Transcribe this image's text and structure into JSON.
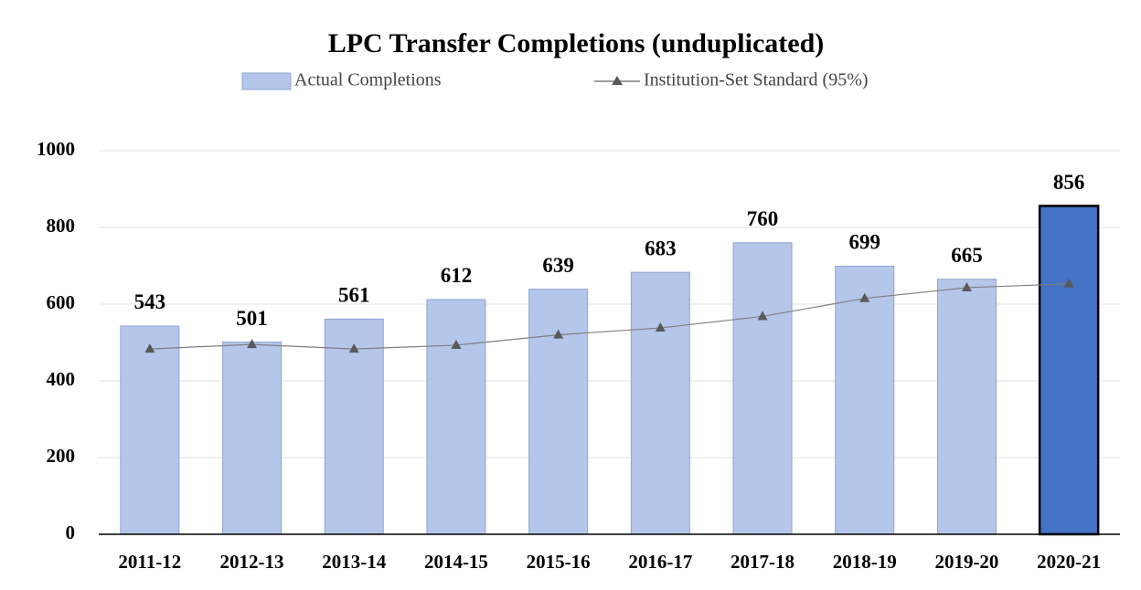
{
  "chart_data": {
    "type": "bar",
    "title": "LPC Transfer Completions  (unduplicated)",
    "categories": [
      "2011-12",
      "2012-13",
      "2013-14",
      "2014-15",
      "2015-16",
      "2016-17",
      "2017-18",
      "2018-19",
      "2019-20",
      "2020-21"
    ],
    "series": [
      {
        "name": "Actual Completions",
        "type": "bar",
        "colors": [
          "#b4c6ea",
          "#b4c6ea",
          "#b4c6ea",
          "#b4c6ea",
          "#b4c6ea",
          "#b4c6ea",
          "#b4c6ea",
          "#b4c6ea",
          "#b4c6ea",
          "#4472c4"
        ],
        "color": "#b4c6ea",
        "values": [
          543,
          501,
          561,
          612,
          639,
          683,
          760,
          699,
          665,
          856
        ]
      },
      {
        "name": "Institution-Set Standard (95%)",
        "type": "line",
        "color": "#7f7f7f",
        "values": [
          483,
          495,
          483,
          493,
          520,
          538,
          568,
          615,
          643,
          653
        ]
      }
    ],
    "ylim": [
      0,
      1000
    ],
    "yticks": [
      0,
      200,
      400,
      600,
      800,
      1000
    ],
    "grid": true
  }
}
